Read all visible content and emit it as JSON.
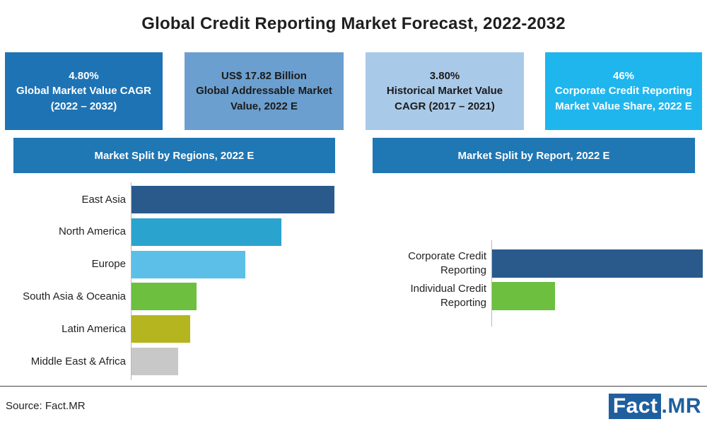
{
  "title": "Global Credit Reporting Market Forecast, 2022-2032",
  "kpis": [
    {
      "line1": "4.80%",
      "line2": "Global Market Value CAGR",
      "line3": "(2022 – 2032)",
      "bg": "#1e73b4",
      "fg": "#ffffff"
    },
    {
      "line1": "US$ 17.82 Billion",
      "line2": "Global Addressable Market",
      "line3": "Value, 2022 E",
      "bg": "#6b9fcf",
      "fg": "#1b1b1b"
    },
    {
      "line1": "3.80%",
      "line2": "Historical Market Value",
      "line3": "CAGR (2017 – 2021)",
      "bg": "#a9c9e8",
      "fg": "#1b1b1b"
    },
    {
      "line1": "46%",
      "line2": "Corporate Credit Reporting",
      "line3": "Market Value Share, 2022 E",
      "bg": "#1fb6ee",
      "fg": "#ffffff"
    }
  ],
  "sections": {
    "regions_heading": "Market Split by Regions, 2022 E",
    "report_heading": "Market Split by Report, 2022 E",
    "heading_color": "#1f77b4"
  },
  "chart_data": [
    {
      "type": "bar",
      "orientation": "horizontal",
      "title": "Market Split by Regions, 2022 E",
      "categories": [
        "East Asia",
        "North America",
        "Europe",
        "South Asia & Oceania",
        "Latin America",
        "Middle East & Africa"
      ],
      "values": [
        100,
        74,
        56,
        32,
        29,
        23
      ],
      "colors": [
        "#2a5a8c",
        "#2ba3cf",
        "#5bbfe8",
        "#6cbf3f",
        "#b5b51f",
        "#c8c8c8"
      ],
      "value_axis_shown": false
    },
    {
      "type": "bar",
      "orientation": "horizontal",
      "title": "Market Split by Report, 2022 E",
      "categories": [
        "Corporate Credit\nReporting",
        "Individual Credit\nReporting"
      ],
      "values": [
        100,
        30
      ],
      "colors": [
        "#2a5a8c",
        "#6cbf3f"
      ],
      "value_axis_shown": false
    }
  ],
  "footer": {
    "source": "Source: Fact.MR",
    "logo_left": "Fact",
    "logo_right": ".MR"
  }
}
